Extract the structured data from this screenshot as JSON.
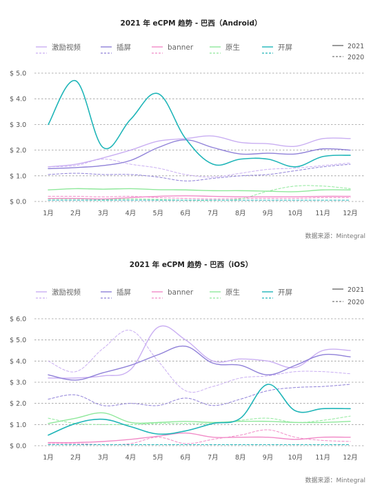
{
  "chart_data": [
    {
      "type": "line",
      "title": "2021 年 eCPM 趋势 - 巴西（Android）",
      "categories": [
        "1月",
        "2月",
        "3月",
        "4月",
        "5月",
        "6月",
        "7月",
        "8月",
        "9月",
        "10月",
        "11月",
        "12月"
      ],
      "ylim": [
        0,
        5
      ],
      "yticks": [
        0,
        1,
        2,
        3,
        4,
        5
      ],
      "ytick_labels": [
        "$ 0.0",
        "$ 1.0",
        "$ 2.0",
        "$ 3.0",
        "$ 4.0",
        "$ 5.0"
      ],
      "grid": true,
      "legend": {
        "position": "top",
        "series_names": [
          "激励视频",
          "插屏",
          "banner",
          "原生",
          "开屏"
        ],
        "year_labels": [
          "2021",
          "2020"
        ]
      },
      "source": "数据来源：Mintegral",
      "series": [
        {
          "name": "激励视频",
          "year": "2021",
          "color": "#c9aef2",
          "dashed": false,
          "values": [
            1.35,
            1.45,
            1.7,
            2.0,
            2.35,
            2.45,
            2.55,
            2.3,
            2.25,
            2.15,
            2.45,
            2.45
          ]
        },
        {
          "name": "插屏",
          "year": "2021",
          "color": "#8f80d8",
          "dashed": false,
          "values": [
            1.28,
            1.32,
            1.4,
            1.6,
            2.1,
            2.4,
            2.1,
            1.85,
            1.88,
            1.85,
            2.05,
            2.0
          ]
        },
        {
          "name": "banner",
          "year": "2021",
          "color": "#f18ac7",
          "dashed": false,
          "values": [
            0.12,
            0.12,
            0.1,
            0.15,
            0.2,
            0.22,
            0.2,
            0.18,
            0.18,
            0.18,
            0.2,
            0.2
          ]
        },
        {
          "name": "原生",
          "year": "2021",
          "color": "#8fe89b",
          "dashed": false,
          "values": [
            0.45,
            0.5,
            0.48,
            0.5,
            0.46,
            0.45,
            0.42,
            0.42,
            0.4,
            0.38,
            0.45,
            0.45
          ]
        },
        {
          "name": "开屏",
          "year": "2021",
          "color": "#1fb5b8",
          "dashed": false,
          "values": [
            3.0,
            4.7,
            2.1,
            3.2,
            4.2,
            2.45,
            1.45,
            1.65,
            1.65,
            1.35,
            1.75,
            1.8
          ]
        },
        {
          "name": "激励视频",
          "year": "2020",
          "color": "#c9aef2",
          "dashed": true,
          "values": [
            1.35,
            1.4,
            1.65,
            1.45,
            1.3,
            1.05,
            0.95,
            1.1,
            1.25,
            1.3,
            1.4,
            1.5
          ]
        },
        {
          "name": "插屏",
          "year": "2020",
          "color": "#8f80d8",
          "dashed": true,
          "values": [
            1.05,
            1.1,
            1.05,
            1.05,
            0.95,
            0.8,
            0.9,
            1.0,
            1.05,
            1.2,
            1.35,
            1.45
          ]
        },
        {
          "name": "banner",
          "year": "2020",
          "color": "#f18ac7",
          "dashed": true,
          "values": [
            0.2,
            0.2,
            0.18,
            0.2,
            0.15,
            0.12,
            0.1,
            0.12,
            0.12,
            0.12,
            0.15,
            0.15
          ]
        },
        {
          "name": "原生",
          "year": "2020",
          "color": "#8fe89b",
          "dashed": true,
          "values": [
            0.1,
            0.1,
            0.08,
            0.1,
            0.08,
            0.05,
            0.05,
            0.1,
            0.4,
            0.6,
            0.6,
            0.5
          ]
        },
        {
          "name": "开屏",
          "year": "2020",
          "color": "#1fb5b8",
          "dashed": true,
          "values": [
            0.05,
            0.05,
            0.05,
            0.05,
            0.05,
            0.05,
            0.05,
            0.05,
            0.05,
            0.05,
            0.05,
            0.05
          ]
        }
      ]
    },
    {
      "type": "line",
      "title": "2021 年 eCPM 趋势 - 巴西（iOS）",
      "categories": [
        "1月",
        "2月",
        "3月",
        "4月",
        "5月",
        "6月",
        "7月",
        "8月",
        "9月",
        "10月",
        "11月",
        "12月"
      ],
      "ylim": [
        0,
        6
      ],
      "yticks": [
        0,
        1,
        2,
        3,
        4,
        5,
        6
      ],
      "ytick_labels": [
        "$ 0.0",
        "$ 1.0",
        "$ 2.0",
        "$ 3.0",
        "$ 4.0",
        "$ 5.0",
        "$ 6.0"
      ],
      "grid": true,
      "legend": {
        "position": "top",
        "series_names": [
          "激励视频",
          "插屏",
          "banner",
          "原生",
          "开屏"
        ],
        "year_labels": [
          "2021",
          "2020"
        ]
      },
      "source": "数据来源：Mintegral",
      "series": [
        {
          "name": "激励视频",
          "year": "2021",
          "color": "#c9aef2",
          "dashed": false,
          "values": [
            3.2,
            3.2,
            3.3,
            3.6,
            5.6,
            5.0,
            4.0,
            4.1,
            4.0,
            3.7,
            4.5,
            4.5
          ]
        },
        {
          "name": "插屏",
          "year": "2021",
          "color": "#8f80d8",
          "dashed": false,
          "values": [
            3.35,
            3.1,
            3.45,
            3.8,
            4.3,
            4.7,
            3.9,
            3.8,
            3.35,
            3.8,
            4.3,
            4.2
          ]
        },
        {
          "name": "banner",
          "year": "2021",
          "color": "#f18ac7",
          "dashed": false,
          "values": [
            0.15,
            0.15,
            0.2,
            0.3,
            0.45,
            0.6,
            0.4,
            0.4,
            0.4,
            0.3,
            0.4,
            0.4
          ]
        },
        {
          "name": "原生",
          "year": "2021",
          "color": "#8fe89b",
          "dashed": false,
          "values": [
            1.05,
            1.3,
            1.55,
            1.1,
            1.1,
            1.15,
            1.1,
            1.15,
            1.15,
            1.1,
            1.1,
            1.15
          ]
        },
        {
          "name": "开屏",
          "year": "2021",
          "color": "#1fb5b8",
          "dashed": false,
          "values": [
            0.5,
            1.05,
            1.25,
            0.9,
            0.55,
            0.7,
            1.05,
            1.3,
            2.9,
            1.65,
            1.75,
            1.75
          ]
        },
        {
          "name": "激励视频",
          "year": "2020",
          "color": "#c9aef2",
          "dashed": true,
          "values": [
            4.0,
            3.5,
            4.6,
            5.45,
            4.0,
            2.6,
            2.8,
            3.2,
            3.3,
            3.5,
            3.5,
            3.4
          ]
        },
        {
          "name": "插屏",
          "year": "2020",
          "color": "#8f80d8",
          "dashed": true,
          "values": [
            2.2,
            2.4,
            1.9,
            2.0,
            1.9,
            2.25,
            1.9,
            2.2,
            2.6,
            2.75,
            2.8,
            2.9
          ]
        },
        {
          "name": "banner",
          "year": "2020",
          "color": "#f18ac7",
          "dashed": true,
          "values": [
            0.1,
            0.1,
            0.05,
            0.1,
            0.4,
            0.1,
            0.3,
            0.5,
            0.75,
            0.4,
            0.25,
            0.2
          ]
        },
        {
          "name": "原生",
          "year": "2020",
          "color": "#8fe89b",
          "dashed": true,
          "values": [
            1.3,
            1.05,
            1.0,
            1.0,
            1.05,
            1.05,
            1.05,
            1.2,
            1.3,
            1.1,
            1.2,
            1.4
          ]
        },
        {
          "name": "开屏",
          "year": "2020",
          "color": "#1fb5b8",
          "dashed": true,
          "values": [
            0.05,
            0.05,
            0.05,
            0.05,
            0.05,
            0.05,
            0.05,
            0.05,
            0.05,
            0.05,
            0.05,
            0.05
          ]
        }
      ]
    }
  ]
}
